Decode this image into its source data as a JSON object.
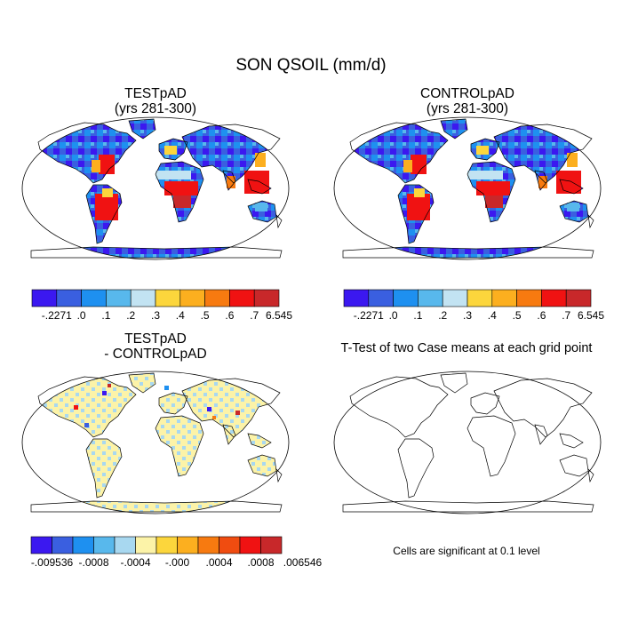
{
  "figure": {
    "main_title": "SON QSOIL (mm/d)",
    "panels": [
      {
        "id": "test",
        "title_line1": "TESTpAD",
        "title_line2": "(yrs 281-300)"
      },
      {
        "id": "control",
        "title_line1": "CONTROLpAD",
        "title_line2": "(yrs 281-300)"
      },
      {
        "id": "diff",
        "title_line1": "TESTpAD",
        "title_line2": "- CONTROLpAD"
      },
      {
        "id": "ttest",
        "title_line1": "T-Test of two Case means at each grid point"
      }
    ],
    "ttest_note": "Cells are significant at 0.1 level"
  },
  "colorbars": {
    "abs": {
      "colors": [
        "#3b18f0",
        "#3a5fe0",
        "#1e90f0",
        "#58b8ec",
        "#c2e3f2",
        "#fcd63c",
        "#fcaf1f",
        "#f77a10",
        "#f01212",
        "#c8282a"
      ],
      "labels": [
        "-.2271",
        ".0",
        ".1",
        ".2",
        ".3",
        ".4",
        ".5",
        ".6",
        ".7",
        "6.545"
      ]
    },
    "diff": {
      "colors": [
        "#3b18f0",
        "#3a5fe0",
        "#1e90f0",
        "#58b8ec",
        "#a8d8f0",
        "#fcf3a8",
        "#fcd63c",
        "#fcaf1f",
        "#f77a10",
        "#f04c10",
        "#f01212",
        "#c8282a"
      ],
      "labels": [
        "-.009536",
        "-.0008",
        "-.0004",
        "-.000",
        ".0004",
        ".0008",
        ".006546"
      ]
    }
  }
}
